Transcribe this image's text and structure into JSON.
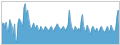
{
  "chart_data": {
    "type": "area",
    "x": [
      0,
      1,
      2,
      3,
      4,
      5,
      6,
      7,
      8,
      9,
      10,
      11,
      12,
      13,
      14,
      15,
      16,
      17,
      18,
      19,
      20,
      21,
      22,
      23,
      24,
      25,
      26,
      27,
      28,
      29,
      30,
      31,
      32,
      33,
      34,
      35,
      36,
      37,
      38,
      39,
      40,
      41,
      42,
      43,
      44,
      45,
      46,
      47,
      48,
      49,
      50,
      51,
      52,
      53,
      54,
      55,
      56,
      57,
      58,
      59,
      60,
      61,
      62,
      63,
      64,
      65,
      66,
      67,
      68,
      69,
      70,
      71,
      72,
      73,
      74,
      75,
      76,
      77,
      78,
      79,
      80,
      81,
      82,
      83,
      84,
      85,
      86,
      87,
      88,
      89,
      90,
      91,
      92,
      93,
      94,
      95,
      96,
      97,
      98,
      99
    ],
    "baseline": 0.0,
    "series": [
      {
        "type": "area",
        "color": "#5ba8d4",
        "values": [
          0.55,
          0.45,
          0.5,
          0.4,
          0.52,
          0.35,
          0.3,
          0.58,
          0.5,
          0.42,
          0.2,
          0.48,
          0.1,
          0.05,
          0.5,
          0.6,
          0.55,
          0.48,
          0.42,
          0.85,
          0.95,
          0.7,
          0.8,
          0.6,
          0.45,
          0.35,
          0.4,
          0.5,
          0.42,
          0.38,
          0.45,
          0.35,
          0.3,
          0.42,
          0.38,
          0.3,
          0.35,
          0.42,
          0.38,
          0.35,
          0.3,
          0.38,
          0.42,
          0.35,
          0.3,
          0.38,
          0.42,
          0.48,
          0.42,
          0.38,
          0.32,
          0.38,
          0.42,
          0.38,
          0.32,
          0.38,
          0.45,
          0.8,
          0.55,
          0.4,
          0.35,
          0.3,
          0.42,
          0.38,
          0.32,
          0.38,
          0.3,
          0.55,
          0.7,
          0.42,
          0.35,
          0.28,
          0.45,
          0.38,
          0.32,
          0.22,
          0.38,
          0.42,
          0.35,
          0.3,
          0.38,
          0.32,
          0.28,
          0.38,
          0.42,
          0.35,
          0.3,
          0.28,
          0.35,
          0.42,
          0.35,
          0.28,
          0.45,
          0.38,
          0.32,
          0.28,
          0.38,
          0.65,
          0.8,
          0.45
        ]
      },
      {
        "type": "line",
        "color": "#4a96c2",
        "values": [
          0.55,
          0.45,
          0.5,
          0.4,
          0.52,
          0.35,
          0.3,
          0.58,
          0.5,
          0.42,
          0.2,
          0.48,
          0.1,
          0.05,
          0.5,
          0.6,
          0.55,
          0.48,
          0.42,
          0.85,
          0.95,
          0.7,
          0.8,
          0.6,
          0.45,
          0.35,
          0.4,
          0.5,
          0.42,
          0.38,
          0.45,
          0.35,
          0.3,
          0.42,
          0.38,
          0.3,
          0.35,
          0.42,
          0.38,
          0.35,
          0.3,
          0.38,
          0.42,
          0.35,
          0.3,
          0.38,
          0.42,
          0.48,
          0.42,
          0.38,
          0.32,
          0.38,
          0.42,
          0.38,
          0.32,
          0.38,
          0.45,
          0.8,
          0.55,
          0.4,
          0.35,
          0.3,
          0.42,
          0.38,
          0.32,
          0.38,
          0.3,
          0.55,
          0.7,
          0.42,
          0.35,
          0.28,
          0.45,
          0.38,
          0.32,
          0.22,
          0.38,
          0.42,
          0.35,
          0.3,
          0.38,
          0.32,
          0.28,
          0.38,
          0.42,
          0.35,
          0.3,
          0.28,
          0.35,
          0.42,
          0.35,
          0.28,
          0.45,
          0.38,
          0.32,
          0.28,
          0.38,
          0.65,
          0.8,
          0.45
        ]
      }
    ],
    "xlim": [
      0,
      99
    ],
    "ylim": [
      0.0,
      1.0
    ],
    "tick_labels": false
  }
}
